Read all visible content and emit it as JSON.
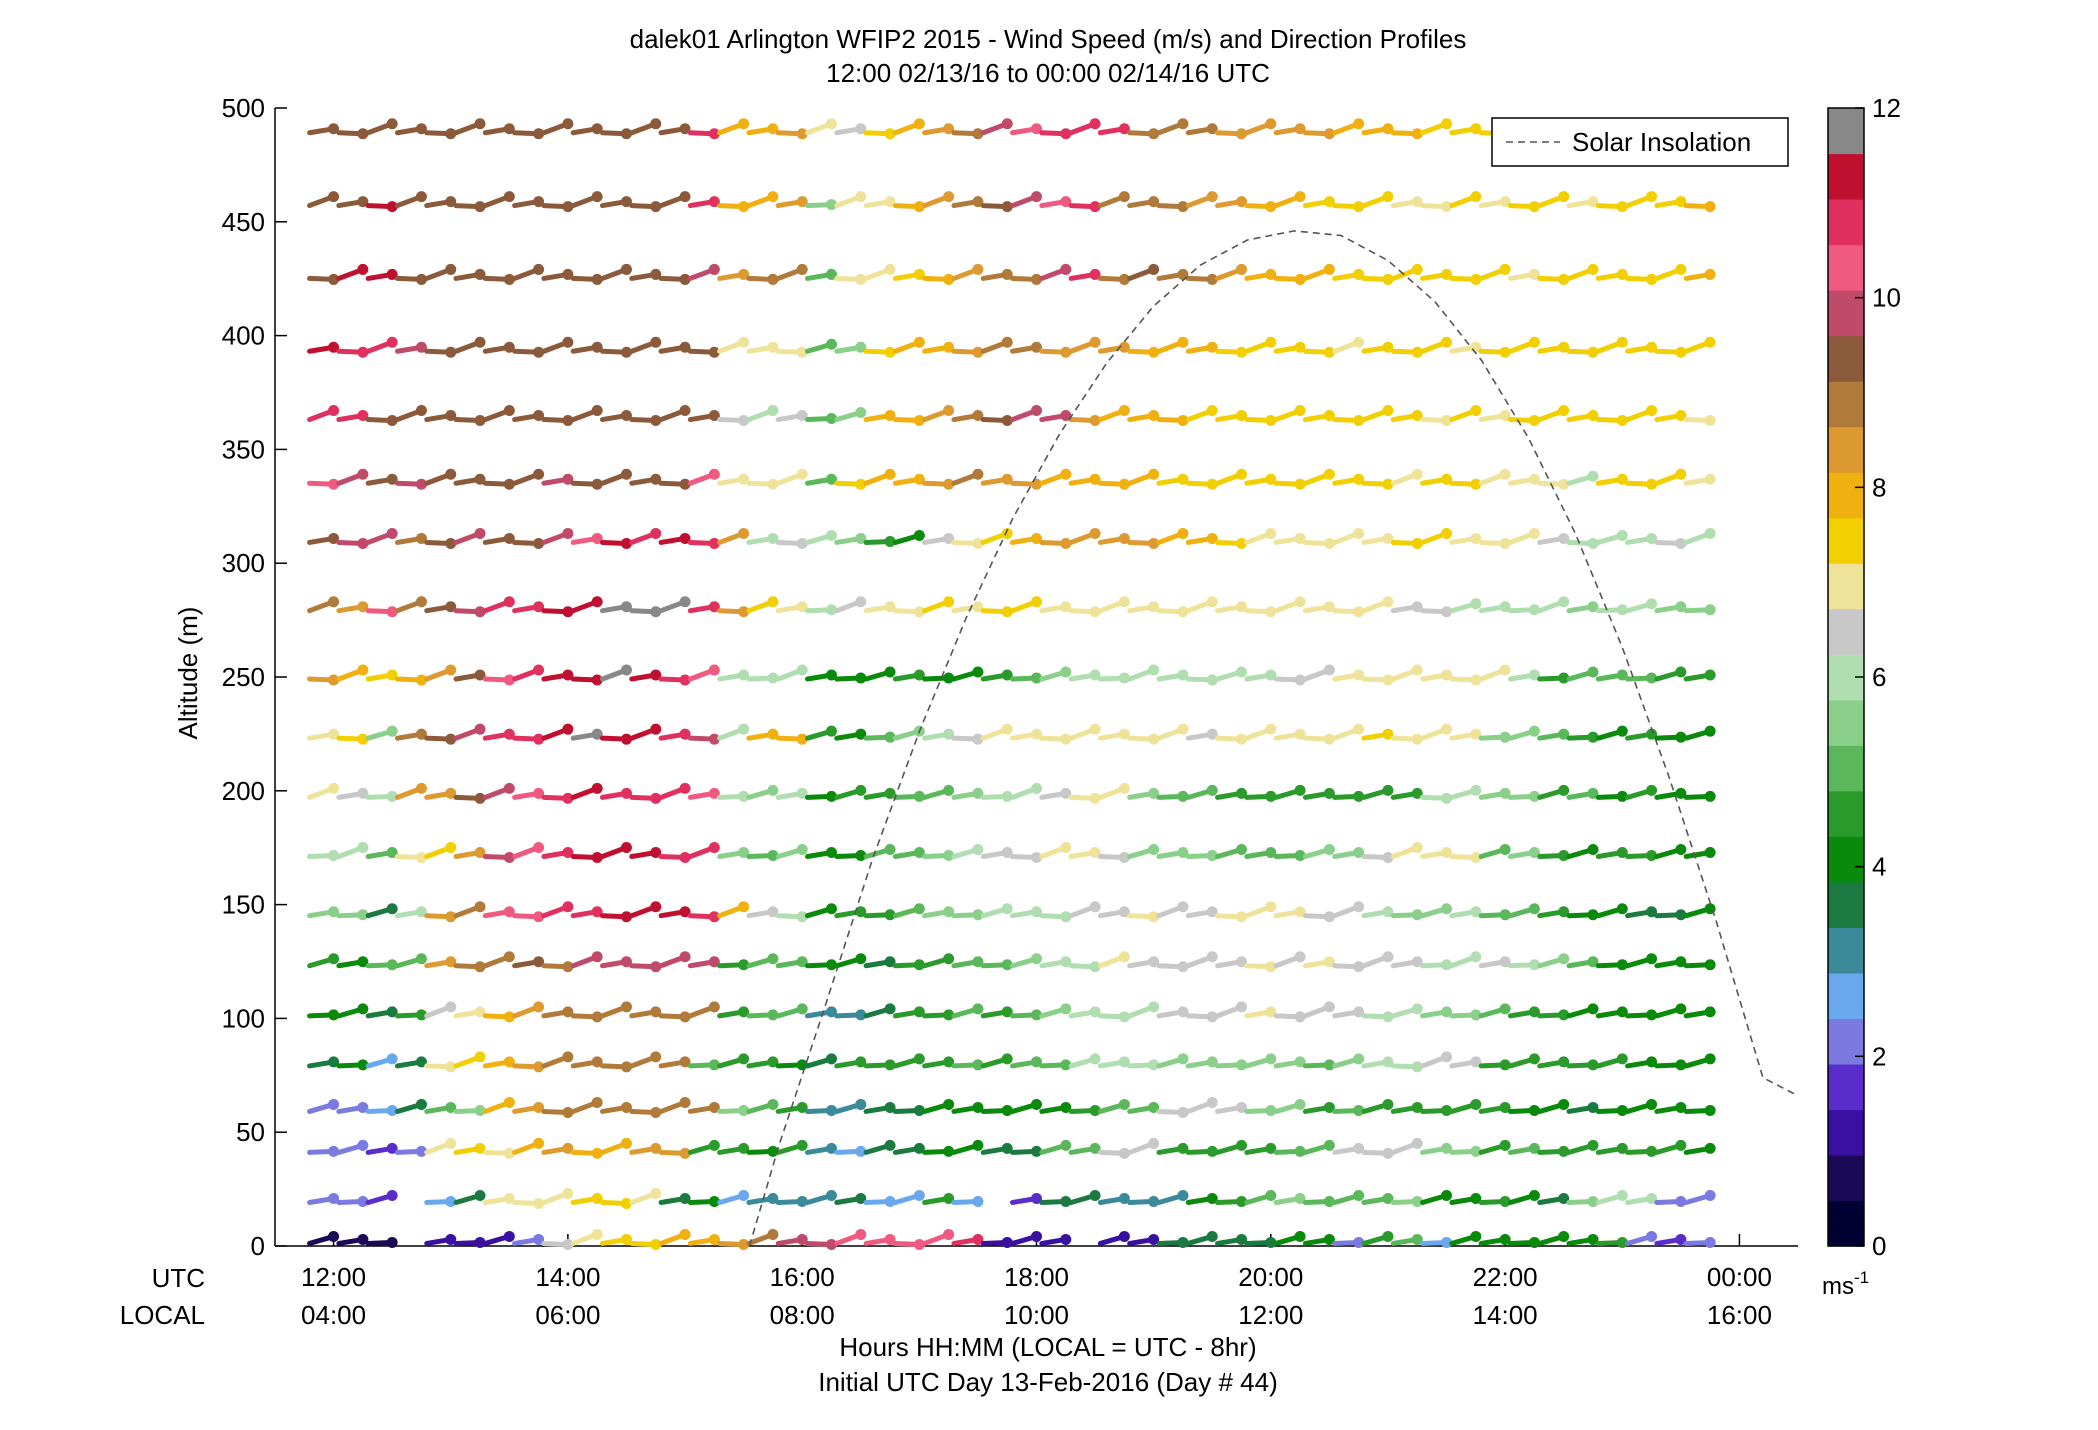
{
  "chart_data": {
    "type": "wind-barb-profile",
    "title": "dalek01 Arlington WFIP2 2015 - Wind Speed (m/s) and Direction Profiles",
    "subtitle": "12:00 02/13/16 to 00:00 02/14/16  UTC",
    "ylabel": "Altitude (m)",
    "xlabel": "Hours HH:MM  (LOCAL = UTC - 8hr)",
    "xlabel2": "Initial UTC Day 13-Feb-2016 (Day # 44)",
    "ylim": [
      0,
      500
    ],
    "yticks": [
      "0",
      "50",
      "100",
      "150",
      "200",
      "250",
      "300",
      "350",
      "400",
      "450",
      "500"
    ],
    "xlim_hours": [
      11.5,
      24.5
    ],
    "row_labels": [
      "UTC",
      "LOCAL"
    ],
    "xticks_utc": [
      "12:00",
      "14:00",
      "16:00",
      "18:00",
      "20:00",
      "22:00",
      "00:00"
    ],
    "xticks_local": [
      "04:00",
      "06:00",
      "08:00",
      "10:00",
      "12:00",
      "14:00",
      "16:00"
    ],
    "xtick_hours": [
      12,
      14,
      16,
      18,
      20,
      22,
      24
    ],
    "legend": {
      "label": "Solar Insolation",
      "location": "top-right",
      "style": "dashed",
      "color": "#555555"
    },
    "colorbar": {
      "min": 0,
      "max": 12,
      "ticks": [
        "0",
        "2",
        "4",
        "6",
        "8",
        "10",
        "12"
      ],
      "unit_label": "ms",
      "unit_exponent": "-1",
      "colors": [
        "#000033",
        "#1a0a55",
        "#3a10a0",
        "#5a2ccc",
        "#7a7ae0",
        "#6aa8ee",
        "#3a8a9a",
        "#1a7a40",
        "#0a8a0a",
        "#2a9a2a",
        "#5ab85a",
        "#8acf8a",
        "#b0deb0",
        "#c8c8c8",
        "#efe39a",
        "#f2cf00",
        "#f0b010",
        "#dd9a30",
        "#b07a3a",
        "#8a5a3a",
        "#c04a6a",
        "#f05a80",
        "#e03060",
        "#c01030",
        "#888888"
      ]
    },
    "altitudes_m": [
      2,
      20,
      42,
      60,
      80,
      102,
      124,
      146,
      172,
      198,
      224,
      250,
      280,
      310,
      336,
      364,
      394,
      426,
      458,
      490
    ],
    "time_start_hour": 12,
    "time_step_hours": 0.25,
    "time_count": 48,
    "solar_insolation_curve": {
      "x_hours": [
        15.55,
        15.8,
        16.2,
        16.6,
        17.0,
        17.4,
        17.8,
        18.2,
        18.6,
        19.0,
        19.4,
        19.8,
        20.2,
        20.6,
        21.0,
        21.4,
        21.8,
        22.2,
        22.6,
        23.0,
        23.4,
        23.8,
        24.2,
        24.5
      ],
      "y_m": [
        0,
        44,
        106,
        170,
        226,
        276,
        320,
        357,
        388,
        413,
        431,
        442,
        446,
        444,
        433,
        415,
        389,
        355,
        313,
        263,
        206,
        143,
        74,
        66
      ]
    },
    "wind_speed_ms": [
      [
        0.5,
        0.4,
        0.3,
        null,
        0.8,
        0.9,
        0.8,
        2.0,
        6.5,
        7.0,
        7.5,
        7.6,
        8.0,
        8.2,
        8.5,
        9.0,
        10.0,
        10.0,
        10.5,
        10.5,
        10.6,
        10.5,
        11.0,
        1.0,
        1.2,
        0.9,
        null,
        1.0,
        1.0,
        3.5,
        3.6,
        3.5,
        3.7,
        4.0,
        4.2,
        2.0,
        4.5,
        5.2,
        2.5,
        3.8,
        3.9,
        4.0,
        3.8,
        4.0,
        4.5,
        2.0,
        1.5,
        1.8
      ],
      [
        1.8,
        1.8,
        1.5,
        null,
        2.5,
        3.5,
        7.0,
        7.2,
        7.0,
        7.3,
        7.5,
        7.2,
        3.5,
        4.0,
        2.5,
        2.8,
        3.0,
        3.2,
        3.3,
        2.5,
        2.6,
        4.5,
        2.5,
        null,
        1.5,
        3.5,
        3.6,
        3.2,
        3.2,
        3.0,
        4.0,
        4.5,
        5.0,
        5.5,
        5.0,
        5.2,
        5.0,
        5.3,
        4.0,
        4.2,
        4.5,
        3.8,
        3.5,
        5.5,
        6.0,
        6.1,
        2.0,
        2.0
      ],
      [
        2.0,
        1.8,
        1.5,
        2.2,
        7.0,
        7.5,
        7.2,
        8.0,
        8.5,
        8.0,
        8.2,
        8.5,
        8.7,
        4.5,
        4.6,
        4.0,
        4.3,
        2.8,
        2.6,
        3.5,
        3.6,
        3.8,
        3.9,
        3.7,
        3.6,
        4.8,
        4.9,
        6.5,
        6.4,
        4.5,
        4.6,
        4.4,
        4.5,
        5.0,
        5.2,
        6.3,
        6.5,
        6.6,
        5.5,
        5.6,
        4.5,
        4.8,
        4.4,
        4.6,
        4.5,
        4.6,
        4.3,
        3.9
      ],
      [
        2.0,
        2.1,
        2.5,
        3.5,
        5.2,
        5.5,
        8.0,
        8.5,
        8.8,
        9.0,
        9.2,
        9.0,
        9.1,
        8.8,
        5.5,
        5.0,
        4.5,
        2.8,
        3.0,
        3.5,
        3.6,
        3.8,
        3.9,
        4.1,
        4.2,
        4.0,
        4.3,
        5.0,
        5.2,
        6.3,
        6.5,
        6.6,
        5.5,
        5.6,
        4.5,
        4.8,
        4.4,
        4.6,
        4.5,
        4.6,
        4.3,
        3.9,
        3.8,
        3.7,
        3.9,
        4.0,
        3.9,
        3.8
      ],
      [
        3.5,
        3.8,
        2.7,
        3.6,
        7.0,
        7.5,
        8.0,
        8.5,
        8.8,
        9.0,
        9.2,
        9.0,
        9.1,
        5.0,
        4.5,
        4.6,
        3.8,
        3.6,
        4.4,
        4.5,
        4.6,
        4.5,
        4.8,
        4.6,
        5.0,
        5.2,
        5.8,
        5.9,
        6.0,
        5.6,
        5.7,
        5.5,
        5.4,
        5.5,
        5.2,
        5.3,
        6.0,
        6.2,
        6.4,
        6.5,
        4.5,
        4.6,
        4.5,
        4.4,
        4.3,
        4.2,
        4.0,
        3.9
      ],
      [
        3.9,
        3.8,
        3.5,
        4.5,
        6.5,
        7.0,
        8.2,
        8.5,
        8.8,
        9.0,
        9.2,
        9.1,
        9.0,
        8.8,
        4.5,
        5.0,
        4.8,
        3.2,
        2.9,
        3.6,
        4.5,
        4.6,
        4.8,
        4.5,
        5.2,
        5.5,
        5.8,
        6.1,
        6.2,
        6.5,
        6.6,
        6.7,
        6.8,
        6.5,
        6.6,
        6.4,
        6.2,
        6.0,
        5.5,
        5.6,
        5.2,
        4.5,
        4.3,
        3.9,
        4.0,
        3.9,
        3.8,
        3.8
      ],
      [
        4.5,
        3.8,
        4.8,
        5.0,
        8.5,
        8.8,
        9.2,
        9.5,
        9.2,
        9.8,
        10.0,
        9.9,
        10.2,
        10.0,
        4.5,
        4.8,
        5.0,
        3.8,
        4.0,
        3.7,
        4.5,
        4.6,
        4.9,
        5.0,
        5.5,
        5.8,
        6.2,
        6.8,
        6.6,
        6.5,
        6.7,
        6.6,
        6.9,
        6.6,
        6.8,
        6.7,
        6.5,
        6.4,
        6.0,
        6.2,
        6.3,
        5.8,
        5.5,
        4.8,
        4.2,
        4.0,
        3.9,
        3.8
      ],
      [
        5.6,
        5.5,
        3.5,
        5.8,
        8.5,
        8.8,
        10.3,
        10.5,
        11.0,
        11.2,
        11.5,
        11.3,
        11.5,
        11.0,
        8.0,
        6.5,
        6.2,
        3.8,
        4.5,
        4.7,
        5.0,
        5.3,
        5.5,
        5.8,
        6.0,
        6.2,
        6.4,
        6.5,
        6.8,
        6.6,
        6.7,
        6.9,
        7.0,
        6.8,
        6.7,
        6.6,
        6.0,
        5.5,
        5.4,
        6.1,
        5.2,
        4.8,
        4.5,
        3.8,
        3.9,
        3.7,
        3.6,
        3.8
      ],
      [
        6.0,
        6.2,
        5.0,
        7.0,
        7.5,
        8.5,
        10.0,
        10.5,
        11.2,
        11.5,
        11.3,
        11.4,
        11.0,
        11.2,
        5.5,
        4.9,
        5.4,
        4.0,
        3.8,
        4.8,
        5.0,
        5.5,
        5.8,
        6.5,
        6.6,
        6.8,
        7.0,
        6.5,
        5.3,
        5.6,
        5.4,
        4.8,
        5.0,
        5.2,
        5.3,
        5.4,
        6.6,
        6.8,
        7.0,
        6.9,
        5.2,
        5.4,
        4.5,
        4.0,
        4.5,
        4.3,
        4.2,
        3.9
      ],
      [
        7.0,
        6.5,
        5.8,
        8.3,
        8.5,
        9.5,
        9.8,
        10.5,
        11.2,
        11.5,
        11.2,
        10.8,
        11.2,
        10.6,
        6.0,
        5.6,
        5.8,
        4.2,
        4.5,
        4.6,
        4.8,
        5.0,
        5.5,
        5.8,
        6.2,
        6.5,
        6.8,
        6.9,
        5.5,
        5.2,
        4.9,
        4.6,
        4.5,
        4.4,
        4.3,
        4.5,
        4.6,
        4.5,
        6.1,
        6.0,
        5.5,
        5.6,
        4.5,
        5.2,
        4.0,
        4.3,
        3.9,
        3.8
      ],
      [
        7.0,
        7.5,
        5.5,
        9.2,
        9.5,
        9.8,
        11.0,
        11.2,
        11.5,
        11.8,
        11.7,
        11.6,
        11.2,
        9.8,
        6.2,
        8.0,
        8.2,
        4.5,
        4.0,
        5.0,
        5.5,
        6.2,
        6.5,
        6.8,
        7.0,
        7.2,
        7.0,
        7.0,
        7.1,
        6.8,
        6.6,
        6.9,
        7.0,
        7.1,
        7.0,
        7.2,
        7.3,
        7.0,
        6.9,
        6.8,
        5.6,
        5.5,
        4.8,
        4.6,
        4.2,
        4.5,
        4.0,
        3.9
      ],
      [
        8.5,
        8.0,
        7.5,
        8.0,
        8.5,
        9.5,
        10.5,
        10.8,
        11.5,
        11.6,
        11.8,
        11.4,
        11.2,
        10.4,
        6.0,
        5.8,
        6.1,
        4.0,
        3.8,
        4.2,
        4.5,
        4.0,
        4.2,
        4.5,
        5.0,
        5.5,
        5.8,
        6.0,
        6.1,
        6.2,
        6.1,
        6.0,
        6.2,
        6.3,
        6.5,
        6.8,
        7.0,
        7.2,
        7.0,
        6.9,
        6.8,
        5.8,
        4.5,
        5.0,
        4.8,
        5.2,
        4.5,
        4.6
      ],
      [
        8.8,
        8.5,
        10.5,
        9.2,
        9.5,
        9.8,
        11.0,
        11.2,
        11.5,
        11.6,
        11.8,
        11.9,
        11.8,
        11.2,
        8.5,
        7.5,
        7.2,
        6.0,
        6.5,
        6.8,
        7.0,
        7.5,
        7.2,
        7.5,
        7.3,
        7.0,
        7.2,
        7.1,
        7.2,
        7.0,
        7.1,
        6.9,
        7.0,
        6.8,
        6.9,
        7.0,
        6.8,
        6.7,
        6.6,
        6.0,
        5.8,
        6.0,
        6.1,
        5.5,
        5.8,
        6.0,
        5.6,
        5.5
      ],
      [
        9.5,
        9.8,
        10.0,
        9.0,
        9.5,
        9.8,
        9.5,
        9.5,
        9.8,
        10.5,
        11.5,
        11.2,
        11.4,
        11.0,
        8.5,
        6.0,
        6.5,
        5.8,
        5.5,
        4.5,
        4.0,
        6.5,
        7.0,
        7.5,
        8.0,
        8.5,
        8.6,
        8.7,
        8.5,
        8.2,
        8.0,
        7.5,
        7.2,
        7.0,
        7.1,
        7.0,
        7.2,
        7.4,
        7.3,
        7.2,
        7.1,
        6.8,
        6.5,
        6.2,
        6.0,
        6.1,
        6.3,
        6.2
      ],
      [
        10.5,
        10.2,
        9.5,
        9.8,
        9.5,
        9.6,
        9.5,
        9.4,
        9.8,
        9.5,
        9.6,
        9.5,
        9.7,
        10.5,
        7.0,
        6.8,
        7.0,
        5.2,
        7.5,
        7.8,
        8.0,
        8.5,
        8.8,
        8.5,
        8.3,
        8.0,
        8.2,
        8.1,
        7.8,
        7.5,
        7.6,
        7.4,
        7.5,
        7.6,
        7.5,
        7.4,
        7.3,
        7.2,
        7.4,
        7.3,
        7.2,
        7.0,
        6.9,
        5.8,
        7.5,
        7.4,
        7.3,
        7.2
      ],
      [
        10.8,
        11.0,
        9.5,
        9.6,
        9.5,
        9.4,
        9.5,
        9.6,
        9.5,
        9.4,
        9.6,
        9.5,
        9.4,
        9.5,
        6.5,
        6.2,
        6.6,
        5.2,
        5.5,
        8.0,
        8.2,
        8.5,
        9.0,
        9.5,
        9.8,
        10.0,
        8.5,
        8.2,
        8.0,
        7.8,
        7.6,
        7.5,
        7.6,
        7.4,
        7.5,
        7.6,
        7.3,
        7.4,
        7.2,
        7.3,
        7.2,
        7.4,
        7.5,
        7.6,
        7.5,
        7.4,
        7.3,
        7.2
      ],
      [
        11.5,
        11.0,
        10.8,
        9.8,
        9.6,
        9.5,
        9.4,
        9.5,
        9.6,
        9.5,
        9.4,
        9.5,
        9.6,
        9.5,
        6.8,
        7.0,
        7.2,
        5.2,
        5.6,
        7.5,
        7.8,
        8.0,
        8.5,
        9.0,
        8.8,
        8.6,
        8.5,
        8.4,
        8.2,
        8.0,
        7.8,
        7.6,
        7.5,
        7.4,
        7.3,
        7.2,
        7.3,
        7.4,
        7.3,
        7.2,
        7.3,
        7.4,
        7.5,
        7.4,
        7.3,
        7.4,
        7.5,
        7.4
      ],
      [
        9.5,
        11.5,
        11.3,
        9.6,
        9.5,
        9.5,
        9.6,
        9.5,
        9.4,
        9.5,
        9.6,
        9.5,
        9.4,
        9.8,
        8.5,
        8.8,
        9.0,
        5.2,
        6.8,
        7.2,
        7.5,
        8.0,
        8.5,
        8.8,
        9.0,
        10.2,
        10.8,
        9.2,
        9.5,
        9.0,
        8.8,
        8.5,
        8.2,
        8.0,
        7.8,
        7.6,
        7.5,
        7.6,
        7.5,
        7.4,
        7.3,
        7.2,
        7.4,
        7.5,
        7.6,
        7.5,
        7.4,
        8.0
      ],
      [
        9.5,
        9.6,
        11.6,
        9.5,
        9.6,
        9.5,
        9.4,
        9.5,
        9.6,
        9.5,
        9.4,
        9.5,
        9.6,
        10.8,
        8.0,
        8.2,
        8.4,
        5.5,
        7.0,
        7.2,
        8.0,
        8.5,
        8.8,
        9.5,
        9.8,
        10.5,
        11.0,
        9.2,
        9.0,
        8.8,
        8.5,
        8.3,
        8.0,
        7.8,
        7.5,
        7.4,
        7.3,
        7.2,
        7.1,
        7.3,
        7.2,
        7.4,
        7.3,
        7.2,
        7.4,
        7.3,
        7.5,
        8.2
      ],
      [
        9.5,
        9.6,
        9.5,
        9.4,
        9.5,
        9.6,
        9.5,
        9.4,
        9.5,
        9.6,
        9.5,
        9.4,
        9.5,
        10.8,
        8.2,
        8.0,
        8.5,
        6.8,
        6.6,
        7.5,
        8.0,
        8.5,
        9.2,
        9.8,
        10.5,
        10.8,
        11.0,
        11.2,
        9.2,
        9.0,
        8.8,
        8.5,
        8.6,
        8.4,
        8.3,
        8.2,
        8.0,
        7.8,
        7.6,
        7.4,
        7.3,
        7.2,
        7.5,
        7.4,
        7.3,
        7.2,
        7.3,
        null
      ]
    ]
  }
}
